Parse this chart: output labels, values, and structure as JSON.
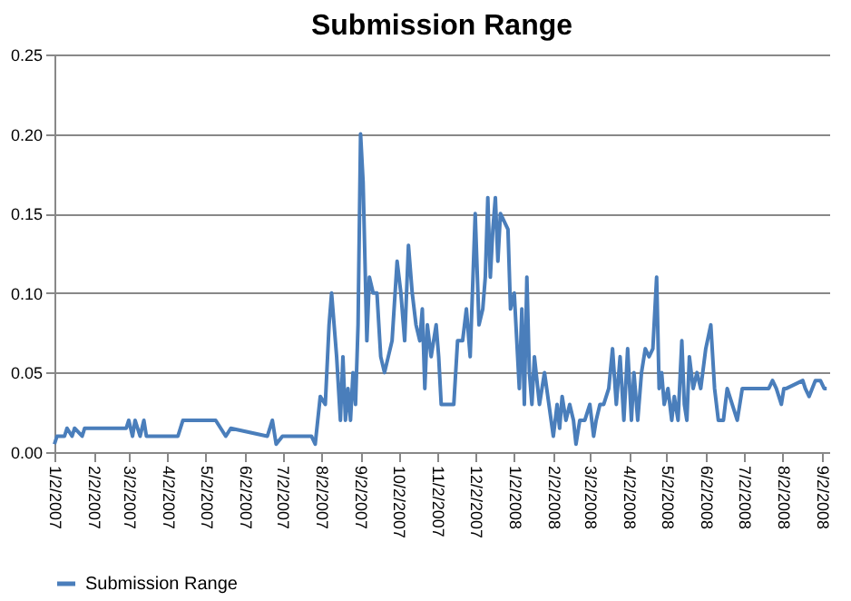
{
  "chart_data": {
    "type": "line",
    "title": "Submission Range",
    "x": [
      "2007-01-02",
      "2007-01-04",
      "2007-01-10",
      "2007-01-12",
      "2007-01-16",
      "2007-01-18",
      "2007-01-24",
      "2007-01-26",
      "2007-02-05",
      "2007-02-20",
      "2007-02-28",
      "2007-03-02",
      "2007-03-05",
      "2007-03-07",
      "2007-03-09",
      "2007-03-11",
      "2007-03-14",
      "2007-03-16",
      "2007-03-20",
      "2007-04-10",
      "2007-04-14",
      "2007-05-10",
      "2007-05-14",
      "2007-05-18",
      "2007-05-22",
      "2007-06-20",
      "2007-06-24",
      "2007-06-27",
      "2007-07-02",
      "2007-07-25",
      "2007-07-28",
      "2007-08-01",
      "2007-08-05",
      "2007-08-08",
      "2007-08-10",
      "2007-08-14",
      "2007-08-17",
      "2007-08-19",
      "2007-08-21",
      "2007-08-23",
      "2007-08-25",
      "2007-08-27",
      "2007-08-29",
      "2007-08-31",
      "2007-09-02",
      "2007-09-04",
      "2007-09-07",
      "2007-09-09",
      "2007-09-12",
      "2007-09-15",
      "2007-09-18",
      "2007-09-21",
      "2007-09-24",
      "2007-09-27",
      "2007-10-01",
      "2007-10-04",
      "2007-10-07",
      "2007-10-10",
      "2007-10-13",
      "2007-10-16",
      "2007-10-19",
      "2007-10-21",
      "2007-10-23",
      "2007-10-25",
      "2007-10-28",
      "2007-11-01",
      "2007-11-03",
      "2007-11-05",
      "2007-11-15",
      "2007-11-18",
      "2007-11-22",
      "2007-11-25",
      "2007-11-28",
      "2007-12-02",
      "2007-12-05",
      "2007-12-08",
      "2007-12-10",
      "2007-12-12",
      "2007-12-14",
      "2007-12-16",
      "2007-12-18",
      "2007-12-20",
      "2007-12-22",
      "2007-12-28",
      "2007-12-30",
      "2008-01-02",
      "2008-01-04",
      "2008-01-06",
      "2008-01-08",
      "2008-01-10",
      "2008-01-12",
      "2008-01-14",
      "2008-01-16",
      "2008-01-18",
      "2008-01-22",
      "2008-01-26",
      "2008-02-02",
      "2008-02-05",
      "2008-02-07",
      "2008-02-09",
      "2008-02-12",
      "2008-02-15",
      "2008-02-18",
      "2008-02-20",
      "2008-02-23",
      "2008-02-27",
      "2008-03-02",
      "2008-03-05",
      "2008-03-07",
      "2008-03-10",
      "2008-03-13",
      "2008-03-17",
      "2008-03-20",
      "2008-03-23",
      "2008-03-26",
      "2008-03-29",
      "2008-04-01",
      "2008-04-04",
      "2008-04-06",
      "2008-04-09",
      "2008-04-12",
      "2008-04-15",
      "2008-04-18",
      "2008-04-21",
      "2008-04-24",
      "2008-04-26",
      "2008-04-28",
      "2008-04-30",
      "2008-05-03",
      "2008-05-06",
      "2008-05-08",
      "2008-05-11",
      "2008-05-14",
      "2008-05-16",
      "2008-05-18",
      "2008-05-20",
      "2008-05-23",
      "2008-05-26",
      "2008-05-29",
      "2008-06-02",
      "2008-06-06",
      "2008-06-09",
      "2008-06-12",
      "2008-06-16",
      "2008-06-19",
      "2008-06-23",
      "2008-06-27",
      "2008-07-01",
      "2008-07-22",
      "2008-07-25",
      "2008-07-28",
      "2008-08-01",
      "2008-08-03",
      "2008-08-05",
      "2008-08-18",
      "2008-08-20",
      "2008-08-23",
      "2008-08-28",
      "2008-09-01",
      "2008-09-04",
      "2008-09-06"
    ],
    "series": [
      {
        "name": "Submission Range",
        "color": "#4a7ebb",
        "values": [
          0.005,
          0.01,
          0.01,
          0.015,
          0.01,
          0.015,
          0.01,
          0.015,
          0.015,
          0.015,
          0.015,
          0.02,
          0.01,
          0.02,
          0.015,
          0.01,
          0.02,
          0.01,
          0.01,
          0.01,
          0.02,
          0.02,
          0.015,
          0.01,
          0.015,
          0.01,
          0.02,
          0.005,
          0.01,
          0.01,
          0.005,
          0.035,
          0.03,
          0.08,
          0.1,
          0.06,
          0.02,
          0.06,
          0.02,
          0.04,
          0.02,
          0.05,
          0.03,
          0.08,
          0.2,
          0.17,
          0.07,
          0.11,
          0.1,
          0.1,
          0.06,
          0.05,
          0.06,
          0.07,
          0.12,
          0.1,
          0.07,
          0.13,
          0.1,
          0.08,
          0.07,
          0.09,
          0.04,
          0.08,
          0.06,
          0.08,
          0.06,
          0.03,
          0.03,
          0.07,
          0.07,
          0.09,
          0.06,
          0.15,
          0.08,
          0.09,
          0.11,
          0.16,
          0.11,
          0.14,
          0.16,
          0.12,
          0.15,
          0.14,
          0.09,
          0.1,
          0.07,
          0.04,
          0.09,
          0.03,
          0.11,
          0.05,
          0.03,
          0.06,
          0.03,
          0.05,
          0.01,
          0.03,
          0.015,
          0.035,
          0.02,
          0.03,
          0.02,
          0.005,
          0.02,
          0.02,
          0.03,
          0.01,
          0.02,
          0.03,
          0.03,
          0.04,
          0.065,
          0.03,
          0.06,
          0.02,
          0.065,
          0.02,
          0.05,
          0.02,
          0.05,
          0.065,
          0.06,
          0.065,
          0.11,
          0.04,
          0.05,
          0.03,
          0.04,
          0.02,
          0.035,
          0.02,
          0.07,
          0.03,
          0.02,
          0.06,
          0.04,
          0.05,
          0.04,
          0.065,
          0.08,
          0.04,
          0.02,
          0.02,
          0.04,
          0.03,
          0.02,
          0.04,
          0.04,
          0.045,
          0.04,
          0.03,
          0.04,
          0.04,
          0.045,
          0.04,
          0.035,
          0.045,
          0.045,
          0.04,
          0.04
        ]
      }
    ],
    "ylim": [
      0,
      0.25
    ],
    "yticks": [
      {
        "value": 0,
        "label": "0.00"
      },
      {
        "value": 0.05,
        "label": "0.05"
      },
      {
        "value": 0.1,
        "label": "0.10"
      },
      {
        "value": 0.15,
        "label": "0.15"
      },
      {
        "value": 0.2,
        "label": "0.20"
      },
      {
        "value": 0.25,
        "label": "0.25"
      }
    ],
    "xlim": [
      "2007-01-02",
      "2008-09-08"
    ],
    "xticks": [
      {
        "value": "2007-01-02",
        "label": "1/2/2007"
      },
      {
        "value": "2007-02-02",
        "label": "2/2/2007"
      },
      {
        "value": "2007-03-02",
        "label": "3/2/2007"
      },
      {
        "value": "2007-04-02",
        "label": "4/2/2007"
      },
      {
        "value": "2007-05-02",
        "label": "5/2/2007"
      },
      {
        "value": "2007-06-02",
        "label": "6/2/2007"
      },
      {
        "value": "2007-07-02",
        "label": "7/2/2007"
      },
      {
        "value": "2007-08-02",
        "label": "8/2/2007"
      },
      {
        "value": "2007-09-02",
        "label": "9/2/2007"
      },
      {
        "value": "2007-10-02",
        "label": "10/2/2007"
      },
      {
        "value": "2007-11-02",
        "label": "11/2/2007"
      },
      {
        "value": "2007-12-02",
        "label": "12/2/2007"
      },
      {
        "value": "2008-01-02",
        "label": "1/2/2008"
      },
      {
        "value": "2008-02-02",
        "label": "2/2/2008"
      },
      {
        "value": "2008-03-02",
        "label": "3/2/2008"
      },
      {
        "value": "2008-04-02",
        "label": "4/2/2008"
      },
      {
        "value": "2008-05-02",
        "label": "5/2/2008"
      },
      {
        "value": "2008-06-02",
        "label": "6/2/2008"
      },
      {
        "value": "2008-07-02",
        "label": "7/2/2008"
      },
      {
        "value": "2008-08-02",
        "label": "8/2/2008"
      },
      {
        "value": "2008-09-02",
        "label": "9/2/2008"
      }
    ],
    "grid": "y",
    "legend": "bottom",
    "marker": "none",
    "line_style": "solid"
  }
}
